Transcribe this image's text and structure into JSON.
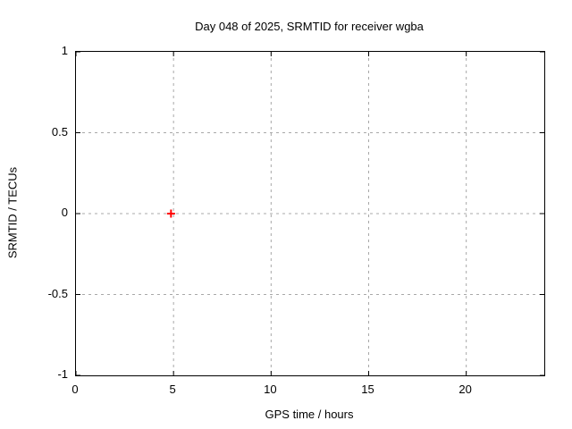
{
  "chart_data": {
    "type": "scatter",
    "title": "Day 048 of 2025, SRMTID for receiver wgba",
    "xlabel": "GPS time / hours",
    "ylabel": "SRMTID / TECUs",
    "xlim": [
      0,
      24
    ],
    "ylim": [
      -1,
      1
    ],
    "xticks": [
      {
        "value": 0,
        "label": "0"
      },
      {
        "value": 5,
        "label": "5"
      },
      {
        "value": 10,
        "label": "10"
      },
      {
        "value": 15,
        "label": "15"
      },
      {
        "value": 20,
        "label": "20"
      }
    ],
    "yticks": [
      {
        "value": -1,
        "label": "-1"
      },
      {
        "value": -0.5,
        "label": "-0.5"
      },
      {
        "value": 0,
        "label": "0"
      },
      {
        "value": 0.5,
        "label": "0.5"
      },
      {
        "value": 1,
        "label": "1"
      }
    ],
    "series": [
      {
        "name": "SRMTID",
        "marker": "plus",
        "color": "#ff0000",
        "points": [
          {
            "x": 4.87,
            "y": 0.0
          }
        ]
      }
    ],
    "grid": "on",
    "grid_color": "#a8a8a8",
    "border_color": "#000000",
    "background_color": "#ffffff",
    "legend_position": "none"
  }
}
